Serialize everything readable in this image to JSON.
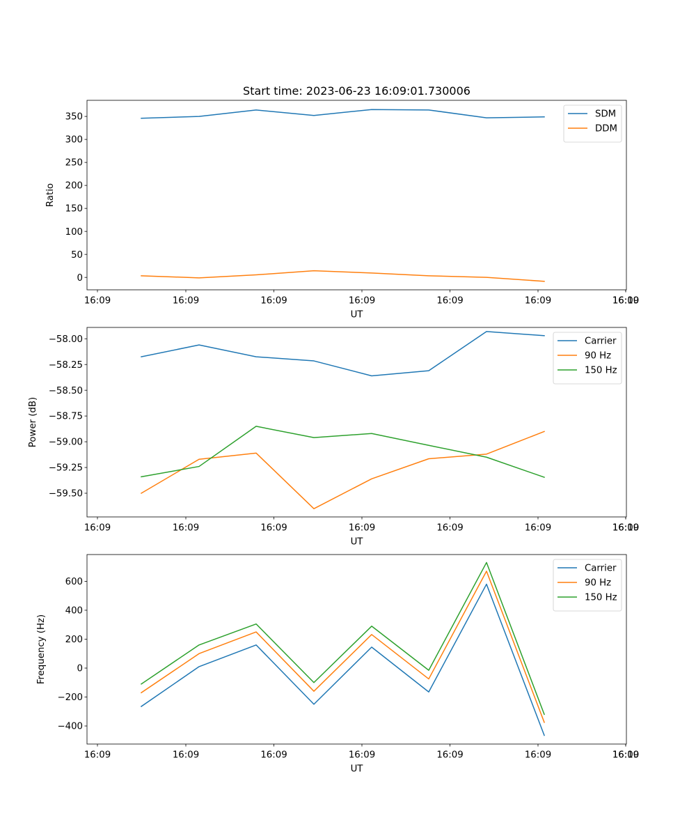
{
  "figure_title": "Start time: 2023-06-23 16:09:01.730006",
  "colors": {
    "blue": "#1f77b4",
    "orange": "#ff7f0e",
    "green": "#2ca02c"
  },
  "chart_data": [
    {
      "type": "line",
      "title": "Start time: 2023-06-23 16:09:01.730006",
      "xlabel": "UT",
      "ylabel": "Ratio",
      "x_tick_labels": [
        "16:09",
        "16:09",
        "16:09",
        "16:09",
        "16:09",
        "16:09",
        "16:09"
      ],
      "x_tick_labels_end": "16:10",
      "ylim": [
        -27,
        385
      ],
      "yticks": [
        0,
        50,
        100,
        150,
        200,
        250,
        300,
        350
      ],
      "ytick_labels": [
        "0",
        "50",
        "100",
        "150",
        "200",
        "250",
        "300",
        "350"
      ],
      "legend_position": "top-right",
      "series": [
        {
          "name": "SDM",
          "color": "#1f77b4",
          "values": [
            346,
            350,
            364,
            352,
            365,
            364,
            347,
            349
          ]
        },
        {
          "name": "DDM",
          "color": "#ff7f0e",
          "values": [
            3.5,
            -1,
            5.5,
            14.5,
            9.5,
            3.5,
            0,
            -8.5
          ]
        }
      ]
    },
    {
      "type": "line",
      "xlabel": "UT",
      "ylabel": "Power (dB)",
      "x_tick_labels": [
        "16:09",
        "16:09",
        "16:09",
        "16:09",
        "16:09",
        "16:09",
        "16:09"
      ],
      "x_tick_labels_end": "16:10",
      "ylim": [
        -59.73,
        -57.89
      ],
      "yticks": [
        -59.5,
        -59.25,
        -59.0,
        -58.75,
        -58.5,
        -58.25,
        -58.0
      ],
      "ytick_labels": [
        "−59.50",
        "−59.25",
        "−59.00",
        "−58.75",
        "−58.50",
        "−58.25",
        "−58.00"
      ],
      "legend_position": "top-right",
      "series": [
        {
          "name": "Carrier",
          "color": "#1f77b4",
          "values": [
            -58.175,
            -58.06,
            -58.175,
            -58.215,
            -58.36,
            -58.31,
            -57.93,
            -57.97
          ]
        },
        {
          "name": "90 Hz",
          "color": "#ff7f0e",
          "values": [
            -59.5,
            -59.17,
            -59.11,
            -59.65,
            -59.36,
            -59.165,
            -59.12,
            -58.9
          ]
        },
        {
          "name": "150 Hz",
          "color": "#2ca02c",
          "values": [
            -59.34,
            -59.24,
            -58.85,
            -58.96,
            -58.92,
            -59.035,
            -59.15,
            -59.345
          ]
        }
      ]
    },
    {
      "type": "line",
      "xlabel": "UT",
      "ylabel": "Frequency (Hz)",
      "x_tick_labels": [
        "16:09",
        "16:09",
        "16:09",
        "16:09",
        "16:09",
        "16:09",
        "16:09"
      ],
      "x_tick_labels_end": "16:10",
      "ylim": [
        -525,
        785
      ],
      "yticks": [
        -400,
        -200,
        0,
        200,
        400,
        600
      ],
      "ytick_labels": [
        "−400",
        "−200",
        "0",
        "200",
        "400",
        "600"
      ],
      "legend_position": "top-right",
      "series": [
        {
          "name": "Carrier",
          "color": "#1f77b4",
          "values": [
            -265,
            10,
            160,
            -250,
            145,
            -165,
            580,
            -465
          ]
        },
        {
          "name": "90 Hz",
          "color": "#ff7f0e",
          "values": [
            -170,
            100,
            250,
            -160,
            232,
            -75,
            670,
            -375
          ]
        },
        {
          "name": "150 Hz",
          "color": "#2ca02c",
          "values": [
            -110,
            160,
            305,
            -100,
            290,
            -15,
            730,
            -320
          ]
        }
      ]
    }
  ]
}
